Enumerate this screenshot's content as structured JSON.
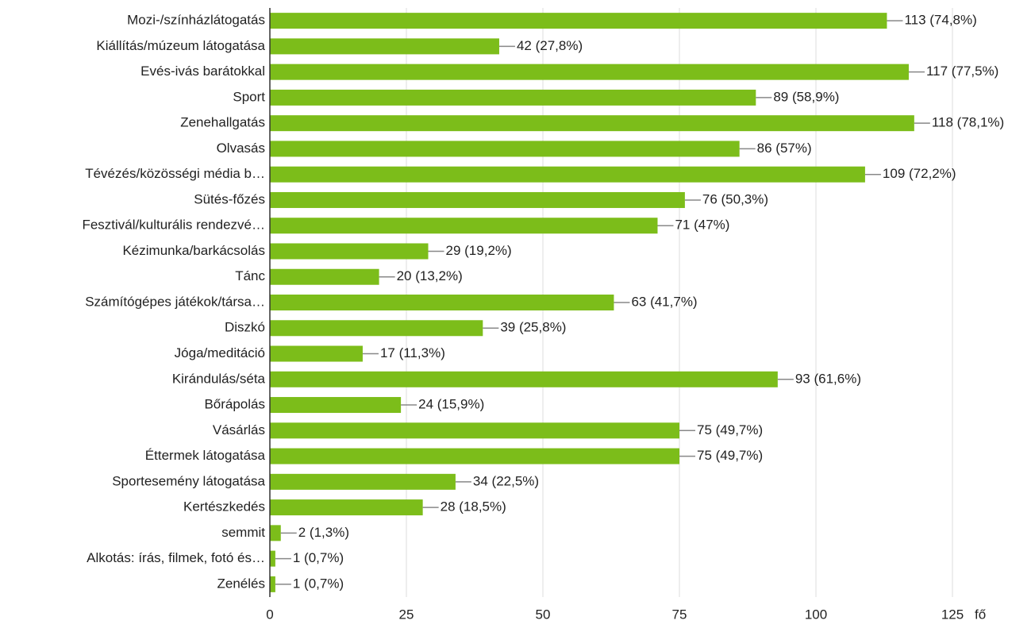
{
  "chart_data": {
    "type": "bar",
    "orientation": "horizontal",
    "categories": [
      "Mozi-/színházlátogatás",
      "Kiállítás/múzeum látogatása",
      "Evés-ivás barátokkal",
      "Sport",
      "Zenehallgatás",
      "Olvasás",
      "Tévézés/közösségi média b…",
      "Sütés-főzés",
      "Fesztivál/kulturális rendezvé…",
      "Kézimunka/barkácsolás",
      "Tánc",
      "Számítógépes játékok/társa…",
      "Diszkó",
      "Jóga/meditáció",
      "Kirándulás/séta",
      "Bőrápolás",
      "Vásárlás",
      "Éttermek látogatása",
      "Sportesemény látogatása",
      "Kertészkedés",
      "semmit",
      "Alkotás: írás, filmek, fotó és…",
      "Zenélés"
    ],
    "values": [
      113,
      42,
      117,
      89,
      118,
      86,
      109,
      76,
      71,
      29,
      20,
      63,
      39,
      17,
      93,
      24,
      75,
      75,
      34,
      28,
      2,
      1,
      1
    ],
    "value_labels": [
      "113 (74,8%)",
      "42 (27,8%)",
      "117 (77,5%)",
      "89 (58,9%)",
      "118 (78,1%)",
      "86 (57%)",
      "109 (72,2%)",
      "76 (50,3%)",
      "71 (47%)",
      "29 (19,2%)",
      "20 (13,2%)",
      "63 (41,7%)",
      "39 (25,8%)",
      "17 (11,3%)",
      "93 (61,6%)",
      "24 (15,9%)",
      "75 (49,7%)",
      "75 (49,7%)",
      "34 (22,5%)",
      "28 (18,5%)",
      "2 (1,3%)",
      "1 (0,7%)",
      "1 (0,7%)"
    ],
    "color": "#7cbd1a",
    "xlabel": "fő",
    "xlim": [
      0,
      125
    ],
    "xticks": [
      0,
      25,
      50,
      75,
      100,
      125
    ],
    "grid": true
  }
}
